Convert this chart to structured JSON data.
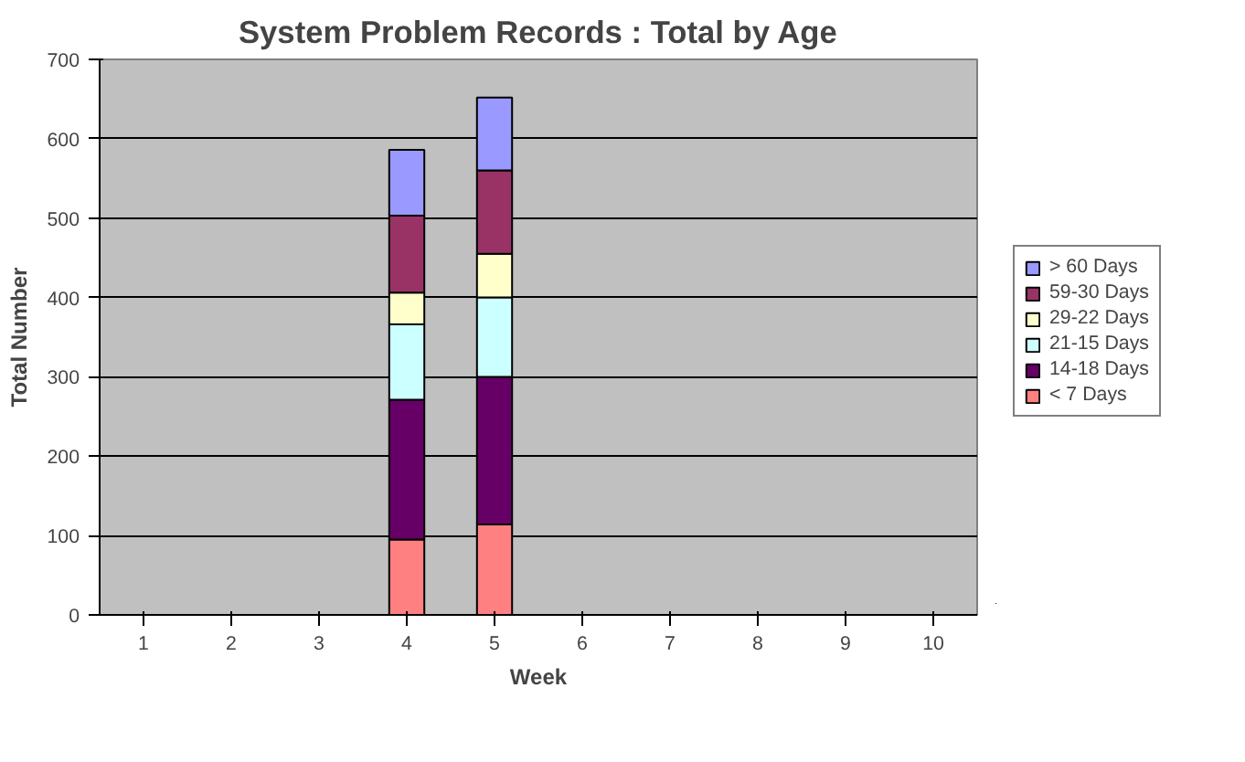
{
  "chart_data": {
    "type": "bar",
    "stacked": true,
    "title": "System Problem Records : Total by Age",
    "xlabel": "Week",
    "ylabel": "Total Number",
    "categories": [
      "1",
      "2",
      "3",
      "4",
      "5",
      "6",
      "7",
      "8",
      "9",
      "10"
    ],
    "series": [
      {
        "name": "< 7 Days",
        "color": "#ff8080",
        "values": [
          null,
          null,
          null,
          95,
          114,
          null,
          null,
          null,
          null,
          null
        ]
      },
      {
        "name": "14-18 Days",
        "color": "#660066",
        "values": [
          null,
          null,
          null,
          176,
          186,
          null,
          null,
          null,
          null,
          null
        ]
      },
      {
        "name": "21-15 Days",
        "color": "#ccffff",
        "values": [
          null,
          null,
          null,
          95,
          100,
          null,
          null,
          null,
          null,
          null
        ]
      },
      {
        "name": "29-22 Days",
        "color": "#ffffcc",
        "values": [
          null,
          null,
          null,
          40,
          55,
          null,
          null,
          null,
          null,
          null
        ]
      },
      {
        "name": "59-30 Days",
        "color": "#993366",
        "values": [
          null,
          null,
          null,
          97,
          105,
          null,
          null,
          null,
          null,
          null
        ]
      },
      {
        "name": "> 60 Days",
        "color": "#9999ff",
        "values": [
          null,
          null,
          null,
          83,
          92,
          null,
          null,
          null,
          null,
          null
        ]
      }
    ],
    "ylim": [
      0,
      700
    ],
    "yticks": [
      0,
      100,
      200,
      300,
      400,
      500,
      600,
      700
    ],
    "grid": "y",
    "legend": "right"
  }
}
